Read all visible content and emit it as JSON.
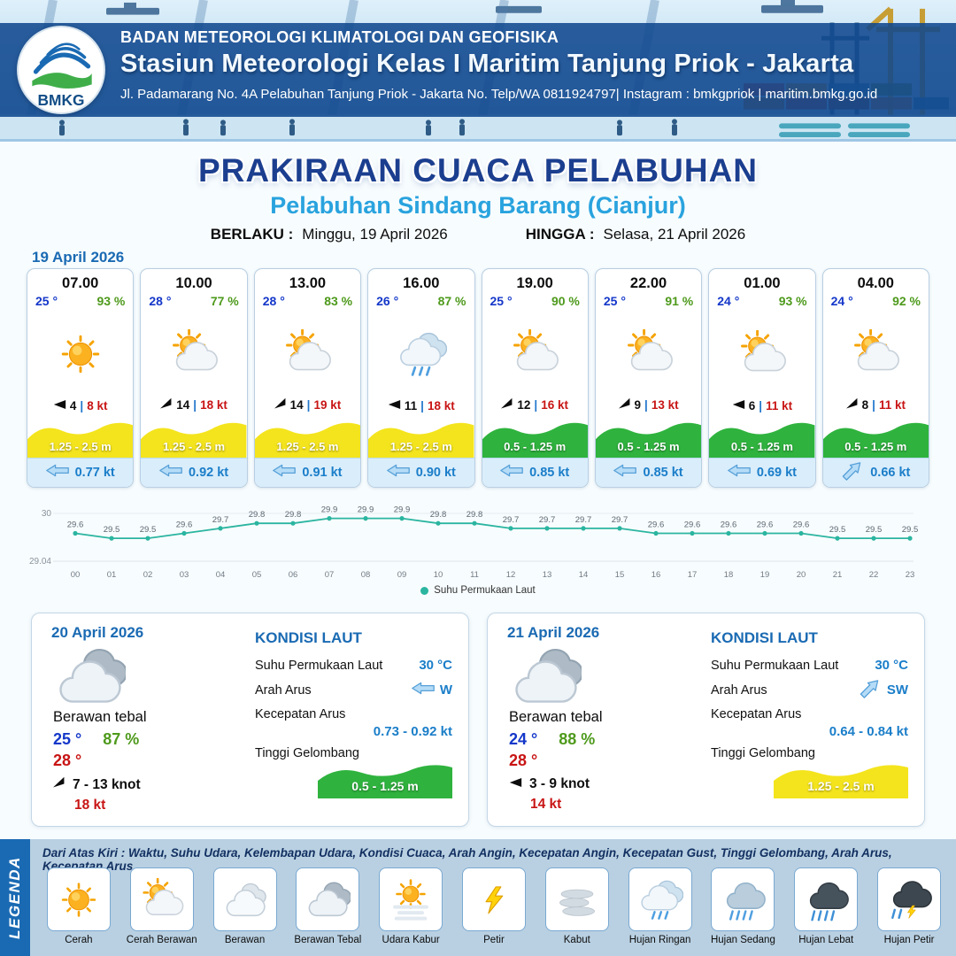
{
  "header": {
    "org": "BADAN METEOROLOGI KLIMATOLOGI DAN GEOFISIKA",
    "station": "Stasiun Meteorologi Kelas I Maritim Tanjung Priok - Jakarta",
    "address": "Jl. Padamarang No. 4A Pelabuhan Tanjung Priok - Jakarta No. Telp/WA 0811924797| Instagram : bmkgpriok | maritim.bmkg.go.id",
    "logo_text": "BMKG"
  },
  "title": {
    "main": "PRAKIRAAN CUACA PELABUHAN",
    "sub": "Pelabuhan Sindang Barang (Cianjur)",
    "berlaku_label": "BERLAKU :",
    "berlaku_value": "Minggu, 19 April 2026",
    "hingga_label": "HINGGA :",
    "hingga_value": "Selasa, 21 April 2026"
  },
  "hourly": {
    "date": "19 April 2026",
    "cards": [
      {
        "time": "07.00",
        "temp": "25 °",
        "rh": "93 %",
        "icon": "cerah",
        "wind_type": "arrow",
        "wind": "4",
        "gust": "8 kt",
        "wave": "1.25 - 2.5 m",
        "wave_level": "yellow",
        "current": "0.77 kt",
        "current_dir": "W"
      },
      {
        "time": "10.00",
        "temp": "28 °",
        "rh": "77 %",
        "icon": "cerah-berawan",
        "wind_type": "flag",
        "wind": "14",
        "gust": "18 kt",
        "wave": "1.25 - 2.5 m",
        "wave_level": "yellow",
        "current": "0.92 kt",
        "current_dir": "W"
      },
      {
        "time": "13.00",
        "temp": "28 °",
        "rh": "83 %",
        "icon": "cerah-berawan",
        "wind_type": "flag",
        "wind": "14",
        "gust": "19 kt",
        "wave": "1.25 - 2.5 m",
        "wave_level": "yellow",
        "current": "0.91 kt",
        "current_dir": "W"
      },
      {
        "time": "16.00",
        "temp": "26 °",
        "rh": "87 %",
        "icon": "hujan-ringan",
        "wind_type": "arrow",
        "wind": "11",
        "gust": "18 kt",
        "wave": "1.25 - 2.5 m",
        "wave_level": "yellow",
        "current": "0.90 kt",
        "current_dir": "W"
      },
      {
        "time": "19.00",
        "temp": "25 °",
        "rh": "90 %",
        "icon": "cerah-berawan",
        "wind_type": "flag",
        "wind": "12",
        "gust": "16 kt",
        "wave": "0.5 - 1.25 m",
        "wave_level": "green",
        "current": "0.85 kt",
        "current_dir": "W"
      },
      {
        "time": "22.00",
        "temp": "25 °",
        "rh": "91 %",
        "icon": "cerah-berawan",
        "wind_type": "flag",
        "wind": "9",
        "gust": "13 kt",
        "wave": "0.5 - 1.25 m",
        "wave_level": "green",
        "current": "0.85 kt",
        "current_dir": "W"
      },
      {
        "time": "01.00",
        "temp": "24 °",
        "rh": "93 %",
        "icon": "cerah-berawan",
        "wind_type": "arrow",
        "wind": "6",
        "gust": "11 kt",
        "wave": "0.5 - 1.25 m",
        "wave_level": "green",
        "current": "0.69 kt",
        "current_dir": "W"
      },
      {
        "time": "04.00",
        "temp": "24 °",
        "rh": "92 %",
        "icon": "cerah-berawan",
        "wind_type": "flag",
        "wind": "8",
        "gust": "11 kt",
        "wave": "0.5 - 1.25 m",
        "wave_level": "green",
        "current": "0.66 kt",
        "current_dir": "NE"
      }
    ]
  },
  "chart_data": {
    "type": "line",
    "series_name": "Suhu Permukaan Laut",
    "x": [
      "00",
      "01",
      "02",
      "03",
      "04",
      "05",
      "06",
      "07",
      "08",
      "09",
      "10",
      "11",
      "12",
      "13",
      "14",
      "15",
      "16",
      "17",
      "18",
      "19",
      "20",
      "21",
      "22",
      "23"
    ],
    "values": [
      29.6,
      29.5,
      29.5,
      29.6,
      29.7,
      29.8,
      29.8,
      29.9,
      29.9,
      29.9,
      29.8,
      29.8,
      29.7,
      29.7,
      29.7,
      29.7,
      29.6,
      29.6,
      29.6,
      29.6,
      29.6,
      29.5,
      29.5,
      29.5
    ],
    "ylim": [
      29.04,
      30
    ],
    "line_color": "#2bb5a0",
    "legend_position": "bottom",
    "grid": false,
    "title": "",
    "xlabel": "",
    "ylabel": ""
  },
  "daily": [
    {
      "date": "20 April 2026",
      "condition": "Berawan tebal",
      "icon": "berawan-tebal",
      "temp_min": "25 °",
      "rh": "87 %",
      "temp_max": "28 °",
      "wind_type": "flag",
      "wind": "7 - 13 knot",
      "gust": "18 kt",
      "sea": {
        "title": "KONDISI LAUT",
        "sst_label": "Suhu Permukaan Laut",
        "sst_value": "30 °C",
        "current_dir_label": "Arah Arus",
        "current_dir": "W",
        "current_dir_arrow": "W",
        "current_speed_label": "Kecepatan Arus",
        "current_speed": "0.73 - 0.92 kt",
        "wave_label": "Tinggi Gelombang",
        "wave": "0.5 - 1.25 m",
        "wave_level": "green"
      }
    },
    {
      "date": "21 April 2026",
      "condition": "Berawan tebal",
      "icon": "berawan-tebal",
      "temp_min": "24 °",
      "rh": "88 %",
      "temp_max": "28 °",
      "wind_type": "arrow",
      "wind": "3 - 9 knot",
      "gust": "14 kt",
      "sea": {
        "title": "KONDISI LAUT",
        "sst_label": "Suhu Permukaan Laut",
        "sst_value": "30 °C",
        "current_dir_label": "Arah Arus",
        "current_dir": "SW",
        "current_dir_arrow": "NE",
        "current_speed_label": "Kecepatan Arus",
        "current_speed": "0.64 - 0.84 kt",
        "wave_label": "Tinggi Gelombang",
        "wave": "1.25 - 2.5 m",
        "wave_level": "yellow"
      }
    }
  ],
  "legend": {
    "bar": "LEGENDA",
    "note": "Dari Atas Kiri : Waktu, Suhu Udara, Kelembapan Udara, Kondisi Cuaca, Arah Angin, Kecepatan Angin, Kecepatan Gust, Tinggi Gelombang, Arah Arus, Kecepatan Arus",
    "items": [
      {
        "label": "Cerah",
        "icon": "cerah"
      },
      {
        "label": "Cerah Berawan",
        "icon": "cerah-berawan"
      },
      {
        "label": "Berawan",
        "icon": "berawan"
      },
      {
        "label": "Berawan Tebal",
        "icon": "berawan-tebal"
      },
      {
        "label": "Udara Kabur",
        "icon": "udara-kabur"
      },
      {
        "label": "Petir",
        "icon": "petir"
      },
      {
        "label": "Kabut",
        "icon": "kabut"
      },
      {
        "label": "Hujan Ringan",
        "icon": "hujan-ringan"
      },
      {
        "label": "Hujan Sedang",
        "icon": "hujan-sedang"
      },
      {
        "label": "Hujan Lebat",
        "icon": "hujan-lebat"
      },
      {
        "label": "Hujan Petir",
        "icon": "hujan-petir"
      }
    ]
  },
  "colors": {
    "accent_blue": "#1a6ab3",
    "temp_blue": "#1437c9",
    "rh_green": "#4e9a1c",
    "gust_red": "#c81414",
    "wave_yellow": "#f4e41d",
    "wave_green": "#2fb33e",
    "line_teal": "#2bb5a0"
  }
}
